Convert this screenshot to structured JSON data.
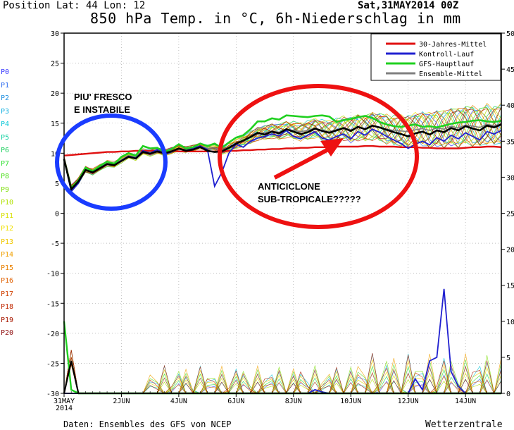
{
  "header": {
    "position": "Position   Lat: 44 Lon: 12",
    "title": "850 hPa Temp. in °C, 6h-Niederschlag in mm",
    "date": "Sat,31MAY2014 00Z"
  },
  "footer": {
    "credit": "Daten: Ensembles des GFS von NCEP",
    "brand": "Wetterzentrale"
  },
  "member_labels": [
    "P0",
    "P1",
    "P2",
    "P3",
    "P4",
    "P5",
    "P6",
    "P7",
    "P8",
    "P9",
    "P10",
    "P11",
    "P12",
    "P13",
    "P14",
    "P15",
    "P16",
    "P17",
    "P18",
    "P19",
    "P20"
  ],
  "member_colors": [
    "#3a3aff",
    "#2f6cf0",
    "#1e90e0",
    "#14b0e0",
    "#10c8d8",
    "#10d0a0",
    "#20d060",
    "#30e030",
    "#50e020",
    "#80e010",
    "#b0e000",
    "#d8e000",
    "#f0e000",
    "#f0c800",
    "#f0a000",
    "#e88000",
    "#e06000",
    "#d04000",
    "#c02800",
    "#a81800",
    "#901010"
  ],
  "annotations": {
    "left": [
      "PIU' FRESCO",
      "E INSTABILE"
    ],
    "right": [
      "ANTICICLONE",
      "SUB-TROPICALE?????"
    ]
  },
  "chart_data": {
    "type": "line",
    "left_axis": {
      "label": "°C",
      "ticks": [
        30,
        25,
        20,
        15,
        10,
        5,
        0,
        -5,
        -10,
        -15,
        -20,
        -25,
        -30
      ],
      "ylim": [
        -30,
        30
      ]
    },
    "right_axis": {
      "label": "mm",
      "ticks": [
        50,
        45,
        40,
        35,
        30,
        25,
        20,
        15,
        10,
        5,
        0
      ],
      "ylim": [
        0,
        50
      ]
    },
    "x_axis": {
      "labels": [
        "31MAY\n2014",
        "2JUN",
        "4JUN",
        "6JUN",
        "8JUN",
        "10JUN",
        "12JUN",
        "14JUN"
      ],
      "days": [
        0,
        2,
        4,
        6,
        8,
        10,
        12,
        14
      ],
      "range_days": [
        0,
        15.25
      ]
    },
    "legend": {
      "placement": "top-right",
      "entries": [
        {
          "name": "30-Jahres-Mittel",
          "color": "#e01010"
        },
        {
          "name": "Kontroll-Lauf",
          "color": "#2020d0"
        },
        {
          "name": "GFS-Hauptlauf",
          "color": "#20d020"
        },
        {
          "name": "Ensemble-Mittel",
          "color": "#808080"
        }
      ]
    },
    "series_temp": {
      "climate_mean": [
        9.6,
        9.7,
        9.8,
        9.9,
        10.0,
        10.1,
        10.2,
        10.2,
        10.3,
        10.3,
        10.4,
        10.4,
        10.4,
        10.4,
        10.4,
        10.4,
        10.3,
        10.3,
        10.3,
        10.3,
        10.3,
        10.3,
        10.3,
        10.4,
        10.4,
        10.5,
        10.5,
        10.6,
        10.6,
        10.7,
        10.7,
        10.8,
        10.8,
        10.9,
        10.9,
        11.0,
        11.0,
        11.0,
        11.1,
        11.1,
        11.1,
        11.1,
        11.2,
        11.2,
        11.1,
        11.1,
        11.1,
        11.0,
        11.0,
        11.0,
        10.9,
        10.9,
        10.8,
        10.8,
        10.8,
        10.8,
        10.9,
        11.0,
        11.0,
        11.1,
        11.1,
        11.0
      ],
      "control": [
        9.0,
        3.6,
        5.0,
        7.2,
        6.8,
        7.5,
        8.2,
        8.0,
        8.8,
        9.5,
        9.2,
        10.4,
        10.0,
        10.6,
        9.8,
        10.2,
        10.8,
        10.4,
        10.8,
        11.2,
        10.6,
        4.5,
        6.8,
        10.0,
        11.5,
        11.0,
        12.0,
        12.5,
        12.8,
        13.2,
        12.9,
        13.8,
        12.8,
        12.4,
        13.0,
        13.6,
        12.5,
        12.2,
        12.8,
        13.2,
        12.4,
        13.6,
        13.0,
        14.0,
        13.5,
        12.8,
        12.2,
        11.6,
        10.8,
        11.5,
        12.0,
        11.4,
        12.6,
        12.0,
        13.0,
        12.4,
        13.4,
        12.8,
        12.2,
        13.6,
        13.2,
        13.8
      ],
      "gfs_main": [
        9.0,
        4.2,
        5.5,
        7.6,
        7.0,
        7.9,
        8.6,
        8.2,
        9.4,
        10.0,
        9.6,
        11.2,
        10.8,
        10.9,
        10.2,
        10.7,
        11.5,
        10.8,
        11.0,
        11.6,
        11.2,
        11.6,
        10.9,
        11.8,
        12.6,
        13.0,
        14.0,
        15.3,
        15.3,
        15.8,
        15.6,
        16.3,
        16.2,
        16.1,
        16.0,
        16.2,
        16.3,
        16.1,
        15.2,
        15.5,
        15.7,
        16.0,
        16.2,
        15.9,
        15.2,
        14.8,
        14.5,
        14.4,
        14.6,
        14.8,
        14.4,
        14.5,
        14.3,
        14.6,
        14.9,
        15.1,
        15.2,
        15.4,
        15.5,
        15.3,
        15.2,
        15.4
      ],
      "ensemble_mean": [
        9.0,
        4.2,
        5.4,
        7.3,
        6.9,
        7.6,
        8.3,
        8.1,
        8.9,
        9.6,
        9.3,
        10.3,
        10.0,
        10.4,
        10.1,
        10.4,
        10.8,
        10.6,
        10.9,
        11.2,
        10.8,
        10.9,
        10.5,
        11.0,
        11.6,
        12.0,
        12.6,
        13.2,
        13.4,
        13.7,
        13.5,
        14.0,
        13.8,
        13.6,
        13.8,
        14.2,
        13.8,
        13.6,
        13.9,
        14.2,
        13.9,
        14.3,
        14.1,
        14.5,
        14.3,
        14.0,
        13.8,
        13.7,
        13.6,
        13.9,
        14.1,
        13.8,
        14.2,
        14.0,
        14.5,
        14.2,
        14.7,
        14.5,
        14.3,
        14.8,
        14.6,
        14.9
      ],
      "ensemble_mean_thick": [
        9.0,
        4.0,
        5.3,
        7.2,
        6.8,
        7.5,
        8.2,
        8.0,
        8.7,
        9.4,
        9.1,
        10.2,
        9.9,
        10.3,
        10.0,
        10.3,
        10.8,
        10.4,
        10.6,
        11.0,
        10.4,
        10.2,
        10.3,
        10.9,
        11.6,
        12.1,
        12.7,
        13.4,
        13.1,
        13.6,
        13.3,
        14.0,
        13.6,
        13.2,
        13.5,
        14.1,
        13.7,
        13.4,
        13.8,
        14.2,
        13.7,
        14.4,
        14.0,
        14.6,
        14.3,
        13.9,
        13.5,
        13.2,
        12.8,
        13.3,
        13.6,
        13.1,
        13.8,
        13.5,
        14.2,
        13.8,
        14.5,
        14.1,
        13.8,
        14.6,
        14.3,
        14.8
      ]
    },
    "series_precip_mm": {
      "gfs_main": [
        10.0,
        0.5,
        0,
        0,
        0,
        0,
        0,
        0,
        0,
        0,
        0,
        0,
        0,
        0,
        0,
        0,
        0,
        0,
        0,
        0,
        0,
        0,
        0,
        0,
        0,
        0,
        0,
        0,
        0,
        0,
        0,
        0,
        0,
        0,
        0,
        0,
        0,
        0,
        0,
        0,
        0,
        0,
        0,
        0,
        0,
        0,
        0,
        0,
        0,
        0,
        0,
        0,
        0,
        0,
        0,
        0,
        0,
        0,
        0,
        0,
        0,
        0
      ],
      "control": [
        0,
        0,
        0,
        0,
        0,
        0,
        0,
        0,
        0,
        0,
        0,
        0,
        0,
        0,
        0,
        0,
        0,
        0,
        0,
        0,
        0,
        0,
        0,
        0,
        0,
        0,
        0,
        0,
        0,
        0,
        0,
        0,
        0,
        0,
        0,
        0.5,
        0.2,
        0,
        0,
        0,
        0,
        0,
        0,
        0,
        0,
        0,
        0,
        0,
        0,
        2.0,
        0.5,
        4.5,
        5.0,
        14.5,
        3.0,
        1.0,
        0,
        0,
        0,
        0,
        0,
        0
      ],
      "ensemble_mean": [
        0,
        4.5,
        0,
        0,
        0,
        0,
        0,
        0,
        0,
        0,
        0,
        0,
        0,
        0,
        0,
        0,
        0,
        0,
        0,
        0,
        0,
        0,
        0,
        0,
        0,
        0,
        0,
        0,
        0,
        0,
        0,
        0,
        0,
        0,
        0,
        0,
        0,
        0,
        0,
        0,
        0,
        0,
        0,
        0,
        0,
        0,
        0,
        0,
        0,
        0,
        0,
        0,
        0,
        0,
        0,
        0,
        0,
        0,
        0,
        0,
        0,
        0
      ]
    }
  }
}
